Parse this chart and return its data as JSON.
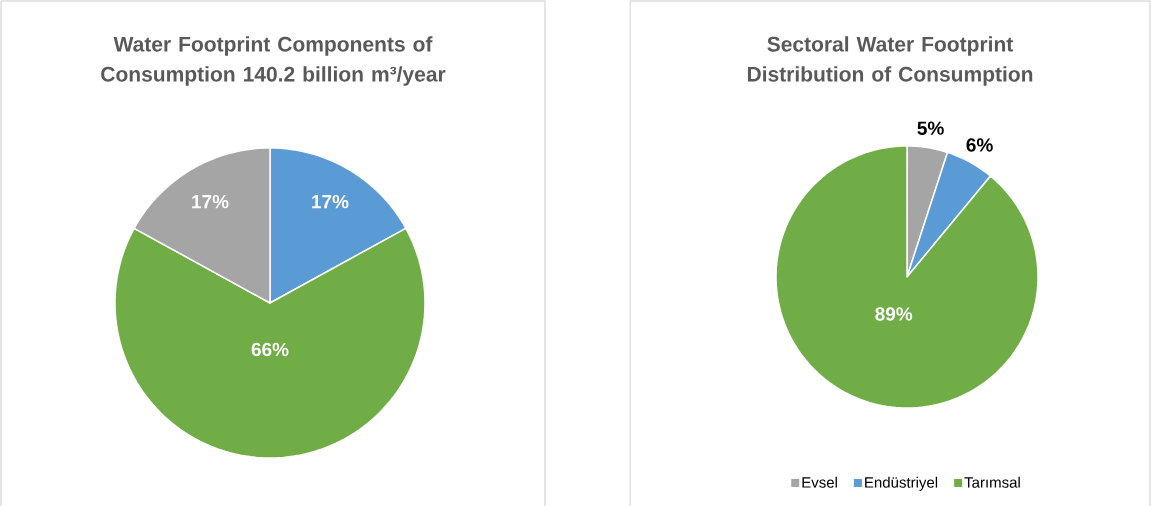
{
  "chart_data": [
    {
      "type": "pie",
      "title": "Water Footprint Components of Consumption 140.2 billion m³/year",
      "categories": [
        null,
        null,
        null
      ],
      "values": [
        17,
        66,
        17
      ],
      "colors": [
        "#5b9bd5",
        "#70ad47",
        "#a5a5a5"
      ],
      "value_labels": [
        "17%",
        "66%",
        "17%"
      ]
    },
    {
      "type": "pie",
      "title": "Sectoral Water Footprint Distribution of Consumption",
      "categories": [
        "Evsel",
        "Endüstriyel",
        "Tarımsal"
      ],
      "values": [
        5,
        6,
        89
      ],
      "colors": [
        "#a5a5a5",
        "#5b9bd5",
        "#70ad47"
      ],
      "value_labels": [
        "5%",
        "6%",
        "89%"
      ],
      "legend": "bottom"
    }
  ]
}
